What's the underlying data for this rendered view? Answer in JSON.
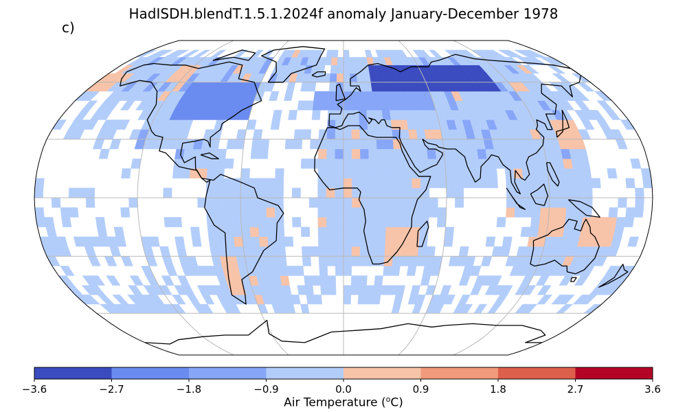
{
  "title": "HadISDH.blendT.1.5.1.2024f anomaly January-December 1978",
  "panel_label": "c)",
  "colorbar": {
    "label_prefix": "Air Temperature (",
    "label_sup": "o",
    "label_suffix": "C)",
    "ticks": [
      "−3.6",
      "−2.7",
      "−1.8",
      "−0.9",
      "0.0",
      "0.9",
      "1.8",
      "2.7",
      "3.6"
    ],
    "colors": [
      "#3b4cc0",
      "#6a8bef",
      "#87a6f8",
      "#b3cdfb",
      "#f7c3a9",
      "#f29a7c",
      "#dd604c",
      "#b40426"
    ]
  },
  "map": {
    "projection": "robinson",
    "graticule_color": "#b8b8b8",
    "coast_color": "#000000",
    "cell_size_deg": 5
  }
}
